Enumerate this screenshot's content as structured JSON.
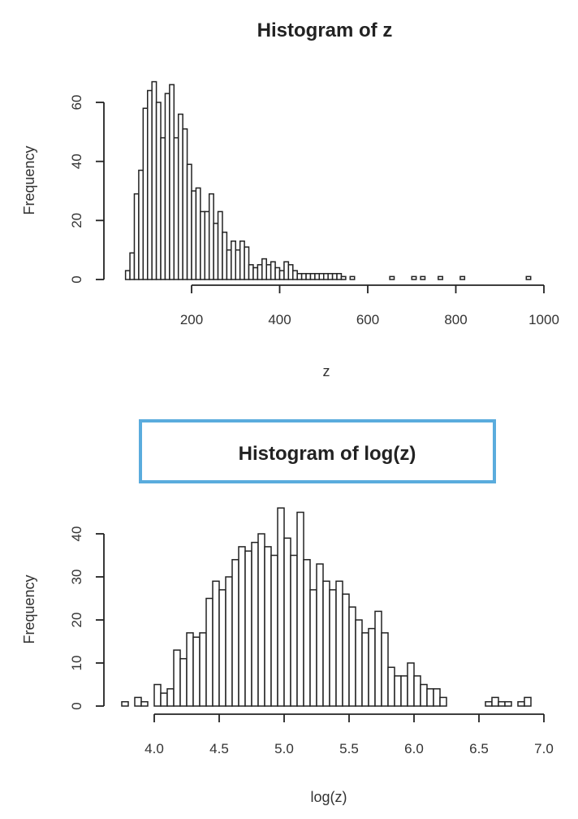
{
  "chart_data": [
    {
      "type": "bar",
      "title": "Histogram of z",
      "xlabel": "z",
      "ylabel": "Frequency",
      "xlim": [
        40,
        980
      ],
      "ylim": [
        0,
        66
      ],
      "x_ticks": [
        200,
        400,
        600,
        800,
        1000
      ],
      "x_tick_labels": [
        "200",
        "400",
        "600",
        "800",
        "1000"
      ],
      "y_ticks": [
        0,
        20,
        40,
        60
      ],
      "y_tick_labels": [
        "0",
        "20",
        "40",
        "60"
      ],
      "bin_width": 10,
      "bins_start": [
        50,
        60,
        70,
        80,
        90,
        100,
        110,
        120,
        130,
        140,
        150,
        160,
        170,
        180,
        190,
        200,
        210,
        220,
        230,
        240,
        250,
        260,
        270,
        280,
        290,
        300,
        310,
        320,
        330,
        340,
        350,
        360,
        370,
        380,
        390,
        400,
        410,
        420,
        430,
        440,
        450,
        460,
        470,
        480,
        490,
        500,
        510,
        520,
        530,
        540,
        560,
        650,
        700,
        720,
        760,
        810,
        960
      ],
      "values": [
        3,
        9,
        29,
        37,
        58,
        64,
        67,
        60,
        48,
        63,
        66,
        48,
        56,
        51,
        39,
        30,
        31,
        23,
        23,
        29,
        19,
        23,
        16,
        10,
        13,
        10,
        13,
        11,
        5,
        4,
        5,
        7,
        5,
        6,
        4,
        3,
        6,
        5,
        3,
        2,
        2,
        2,
        2,
        2,
        2,
        2,
        2,
        2,
        2,
        1,
        1,
        1,
        1,
        1,
        1,
        1,
        1
      ]
    },
    {
      "type": "bar",
      "title": "Histogram of log(z)",
      "xlabel": "log(z)",
      "ylabel": "Frequency",
      "xlim": [
        3.75,
        6.9
      ],
      "ylim": [
        0,
        46
      ],
      "x_ticks": [
        4.0,
        4.5,
        5.0,
        5.5,
        6.0,
        6.5,
        7.0
      ],
      "x_tick_labels": [
        "4.0",
        "4.5",
        "5.0",
        "5.5",
        "6.0",
        "6.5",
        "7.0"
      ],
      "y_ticks": [
        0,
        10,
        20,
        30,
        40
      ],
      "y_tick_labels": [
        "0",
        "10",
        "20",
        "30",
        "40"
      ],
      "bin_width": 0.05,
      "bins_start": [
        3.75,
        3.8,
        3.85,
        3.9,
        3.95,
        4.0,
        4.05,
        4.1,
        4.15,
        4.2,
        4.25,
        4.3,
        4.35,
        4.4,
        4.45,
        4.5,
        4.55,
        4.6,
        4.65,
        4.7,
        4.75,
        4.8,
        4.85,
        4.9,
        4.95,
        5.0,
        5.05,
        5.1,
        5.15,
        5.2,
        5.25,
        5.3,
        5.35,
        5.4,
        5.45,
        5.5,
        5.55,
        5.6,
        5.65,
        5.7,
        5.75,
        5.8,
        5.85,
        5.9,
        5.95,
        6.0,
        6.05,
        6.1,
        6.15,
        6.2,
        6.25,
        6.3,
        6.5,
        6.55,
        6.6,
        6.65,
        6.7,
        6.8,
        6.85
      ],
      "values": [
        1,
        0,
        2,
        1,
        0,
        5,
        3,
        4,
        13,
        11,
        17,
        16,
        17,
        25,
        29,
        27,
        30,
        34,
        37,
        36,
        38,
        40,
        37,
        35,
        46,
        39,
        35,
        45,
        34,
        27,
        33,
        29,
        27,
        29,
        26,
        23,
        20,
        17,
        18,
        22,
        17,
        9,
        7,
        7,
        10,
        7,
        5,
        4,
        4,
        2,
        0,
        0,
        0,
        1,
        2,
        1,
        1,
        1,
        2
      ],
      "title_highlight_color": "#5aacdd"
    }
  ]
}
